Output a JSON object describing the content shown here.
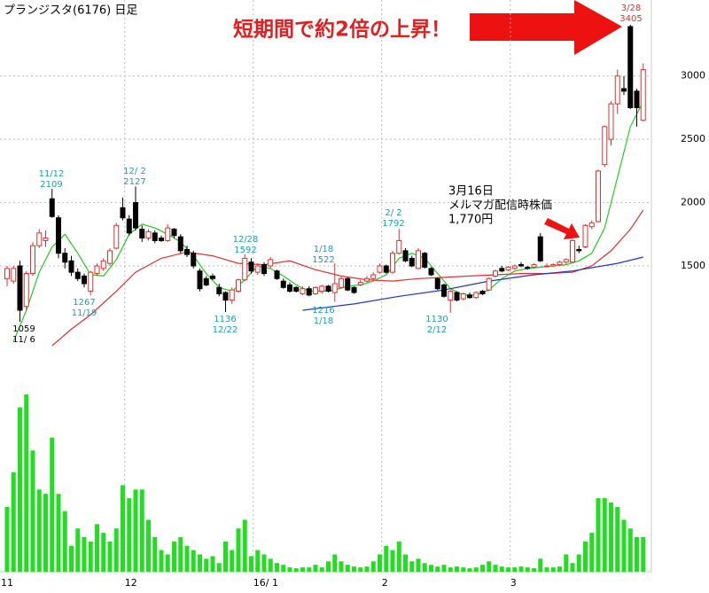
{
  "chart_data": {
    "type": "candlestick",
    "title": "プランジスタ(6176) 日足",
    "headline": "短期間で約2倍の上昇！",
    "callout": [
      "3月16日",
      "メルマガ配信時株価",
      "1,770円"
    ],
    "categories": [
      "11",
      null,
      null,
      null,
      null,
      null,
      null,
      null,
      null,
      null,
      null,
      null,
      null,
      null,
      null,
      null,
      null,
      null,
      null,
      "12",
      null,
      null,
      null,
      null,
      null,
      null,
      null,
      null,
      null,
      null,
      null,
      null,
      null,
      null,
      null,
      null,
      null,
      null,
      null,
      "16/ 1",
      null,
      null,
      null,
      null,
      null,
      null,
      null,
      null,
      null,
      null,
      null,
      null,
      null,
      null,
      null,
      null,
      null,
      null,
      null,
      "2",
      null,
      null,
      null,
      null,
      null,
      null,
      null,
      null,
      null,
      null,
      null,
      null,
      null,
      null,
      null,
      null,
      null,
      null,
      null,
      "3",
      null,
      null,
      null,
      null,
      null,
      null,
      null,
      null,
      null,
      null,
      null,
      null,
      null,
      null,
      null,
      null,
      null,
      null,
      null,
      null
    ],
    "ohlc": [
      [
        1400,
        1500,
        1340,
        1480
      ],
      [
        1380,
        1500,
        1360,
        1480
      ],
      [
        1500,
        1540,
        1059,
        1150
      ],
      [
        1180,
        1460,
        1150,
        1440
      ],
      [
        1440,
        1690,
        1420,
        1660
      ],
      [
        1660,
        1790,
        1640,
        1760
      ],
      [
        1700,
        1780,
        1650,
        1720
      ],
      [
        2030,
        2109,
        1880,
        1890
      ],
      [
        1880,
        1900,
        1560,
        1600
      ],
      [
        1600,
        1640,
        1480,
        1530
      ],
      [
        1540,
        1580,
        1420,
        1450
      ],
      [
        1450,
        1480,
        1380,
        1400
      ],
      [
        1420,
        1440,
        1330,
        1360
      ],
      [
        1300,
        1460,
        1267,
        1450
      ],
      [
        1440,
        1520,
        1420,
        1500
      ],
      [
        1480,
        1560,
        1460,
        1540
      ],
      [
        1520,
        1640,
        1500,
        1620
      ],
      [
        1640,
        1840,
        1630,
        1820
      ],
      [
        1960,
        2040,
        1860,
        1880
      ],
      [
        1870,
        1900,
        1740,
        1760
      ],
      [
        2000,
        2127,
        1780,
        1800
      ],
      [
        1790,
        1820,
        1690,
        1720
      ],
      [
        1720,
        1790,
        1700,
        1770
      ],
      [
        1760,
        1780,
        1680,
        1700
      ],
      [
        1720,
        1740,
        1690,
        1700
      ],
      [
        1700,
        1830,
        1690,
        1800
      ],
      [
        1790,
        1800,
        1720,
        1740
      ],
      [
        1730,
        1750,
        1600,
        1620
      ],
      [
        1630,
        1660,
        1570,
        1590
      ],
      [
        1600,
        1620,
        1480,
        1500
      ],
      [
        1460,
        1480,
        1300,
        1320
      ],
      [
        1400,
        1420,
        1340,
        1350
      ],
      [
        1420,
        1440,
        1390,
        1400
      ],
      [
        1330,
        1360,
        1260,
        1280
      ],
      [
        1290,
        1300,
        1136,
        1230
      ],
      [
        1230,
        1330,
        1200,
        1310
      ],
      [
        1300,
        1400,
        1290,
        1390
      ],
      [
        1390,
        1592,
        1380,
        1560
      ],
      [
        1530,
        1560,
        1440,
        1460
      ],
      [
        1450,
        1520,
        1430,
        1500
      ],
      [
        1510,
        1530,
        1420,
        1440
      ],
      [
        1500,
        1570,
        1480,
        1550
      ],
      [
        1460,
        1470,
        1390,
        1400
      ],
      [
        1380,
        1400,
        1320,
        1330
      ],
      [
        1350,
        1370,
        1290,
        1300
      ],
      [
        1330,
        1340,
        1290,
        1300
      ],
      [
        1280,
        1340,
        1270,
        1320
      ],
      [
        1320,
        1340,
        1260,
        1270
      ],
      [
        1280,
        1340,
        1270,
        1330
      ],
      [
        1300,
        1350,
        1280,
        1340
      ],
      [
        1340,
        1350,
        1290,
        1300
      ],
      [
        1290,
        1522,
        1216,
        1360
      ],
      [
        1330,
        1420,
        1320,
        1400
      ],
      [
        1400,
        1410,
        1300,
        1310
      ],
      [
        1330,
        1340,
        1280,
        1290
      ],
      [
        1350,
        1390,
        1340,
        1370
      ],
      [
        1380,
        1420,
        1370,
        1400
      ],
      [
        1400,
        1450,
        1390,
        1430
      ],
      [
        1450,
        1520,
        1440,
        1500
      ],
      [
        1500,
        1510,
        1440,
        1450
      ],
      [
        1450,
        1620,
        1440,
        1600
      ],
      [
        1600,
        1792,
        1590,
        1700
      ],
      [
        1620,
        1640,
        1530,
        1540
      ],
      [
        1560,
        1580,
        1490,
        1500
      ],
      [
        1480,
        1640,
        1470,
        1620
      ],
      [
        1600,
        1610,
        1480,
        1490
      ],
      [
        1480,
        1490,
        1420,
        1430
      ],
      [
        1400,
        1410,
        1310,
        1320
      ],
      [
        1350,
        1360,
        1250,
        1260
      ],
      [
        1230,
        1310,
        1130,
        1300
      ],
      [
        1290,
        1300,
        1220,
        1230
      ],
      [
        1240,
        1290,
        1230,
        1280
      ],
      [
        1270,
        1290,
        1240,
        1250
      ],
      [
        1250,
        1300,
        1240,
        1290
      ],
      [
        1300,
        1310,
        1270,
        1280
      ],
      [
        1310,
        1410,
        1300,
        1400
      ],
      [
        1420,
        1470,
        1410,
        1460
      ],
      [
        1480,
        1500,
        1450,
        1460
      ],
      [
        1470,
        1500,
        1460,
        1490
      ],
      [
        1480,
        1510,
        1470,
        1500
      ],
      [
        1510,
        1530,
        1490,
        1500
      ],
      [
        1490,
        1500,
        1470,
        1480
      ],
      [
        1490,
        1520,
        1480,
        1510
      ],
      [
        1730,
        1760,
        1530,
        1540
      ],
      [
        1500,
        1520,
        1490,
        1500
      ],
      [
        1500,
        1520,
        1490,
        1510
      ],
      [
        1510,
        1540,
        1500,
        1530
      ],
      [
        1530,
        1560,
        1510,
        1550
      ],
      [
        1530,
        1710,
        1520,
        1700
      ],
      [
        1630,
        1660,
        1600,
        1620
      ],
      [
        1650,
        1830,
        1640,
        1820
      ],
      [
        1810,
        1860,
        1790,
        1840
      ],
      [
        1850,
        2260,
        1840,
        2250
      ],
      [
        2300,
        2610,
        2280,
        2600
      ],
      [
        2500,
        2800,
        2450,
        2780
      ],
      [
        2780,
        3050,
        2700,
        3000
      ],
      [
        2900,
        3000,
        2850,
        2880
      ],
      [
        3390,
        3405,
        2740,
        2750
      ],
      [
        2880,
        2900,
        2600,
        2750
      ],
      [
        2650,
        3100,
        2640,
        3050
      ]
    ],
    "up_color": "#e03030",
    "down_color": "#000000",
    "volume": [
      75,
      115,
      190,
      205,
      140,
      95,
      90,
      155,
      90,
      70,
      30,
      50,
      40,
      35,
      55,
      45,
      35,
      50,
      100,
      85,
      95,
      95,
      60,
      40,
      25,
      20,
      35,
      40,
      30,
      25,
      20,
      15,
      18,
      10,
      35,
      25,
      50,
      60,
      18,
      25,
      20,
      15,
      10,
      8,
      5,
      4,
      5,
      5,
      8,
      5,
      12,
      20,
      12,
      8,
      6,
      5,
      6,
      12,
      20,
      30,
      25,
      35,
      20,
      12,
      15,
      10,
      8,
      6,
      8,
      5,
      6,
      5,
      4,
      5,
      8,
      12,
      8,
      6,
      5,
      5,
      6,
      5,
      4,
      15,
      5,
      5,
      6,
      20,
      10,
      20,
      35,
      45,
      85,
      85,
      80,
      75,
      60,
      50,
      40,
      40
    ],
    "volume_color": "#22dd22",
    "vlim": [
      0,
      210
    ],
    "moving_averages": [
      {
        "color": "#22cc22",
        "x": [
          1,
          3,
          5,
          7,
          9,
          11,
          13,
          15,
          17,
          19,
          21,
          23,
          25,
          27,
          29,
          31,
          33,
          35,
          37,
          39,
          41,
          43,
          45,
          47,
          49,
          51,
          53,
          55,
          57,
          59,
          61,
          63,
          65,
          67,
          69,
          71,
          73,
          75,
          77,
          79,
          81,
          83,
          85,
          87,
          89,
          91,
          93,
          95,
          97,
          99
        ],
        "values": [
          905,
          1150,
          1450,
          1650,
          1750,
          1600,
          1430,
          1420,
          1550,
          1750,
          1830,
          1800,
          1750,
          1690,
          1580,
          1440,
          1330,
          1300,
          1390,
          1500,
          1480,
          1420,
          1350,
          1300,
          1300,
          1310,
          1340,
          1350,
          1380,
          1430,
          1560,
          1600,
          1560,
          1440,
          1320,
          1270,
          1270,
          1310,
          1400,
          1460,
          1480,
          1490,
          1500,
          1510,
          1540,
          1600,
          1800,
          2200,
          2600,
          2800
        ]
      },
      {
        "color": "#e03030",
        "x": [
          7,
          10,
          13,
          17,
          20,
          24,
          28,
          32,
          36,
          40,
          44,
          48,
          52,
          56,
          60,
          64,
          68,
          72,
          76,
          80,
          84,
          88,
          91,
          94,
          97,
          99
        ],
        "values": [
          870,
          1000,
          1115,
          1300,
          1450,
          1560,
          1610,
          1580,
          1520,
          1510,
          1540,
          1470,
          1420,
          1390,
          1380,
          1400,
          1410,
          1420,
          1430,
          1440,
          1440,
          1450,
          1500,
          1620,
          1790,
          1940
        ]
      },
      {
        "color": "#2233cc",
        "x": [
          46,
          54,
          61,
          68,
          75,
          82,
          88,
          95,
          99
        ],
        "values": [
          1150,
          1200,
          1260,
          1310,
          1380,
          1430,
          1460,
          1520,
          1570
        ]
      }
    ],
    "annotations": [
      {
        "date": "11/12",
        "value": 2109,
        "color": "#1a9fb0"
      },
      {
        "date": "12/ 2",
        "value": 2127,
        "color": "#1a9fb0"
      },
      {
        "date": "12/28",
        "value": 1592,
        "color": "#1a9fb0"
      },
      {
        "date": "1/18",
        "value": 1522,
        "color": "#1a9fb0"
      },
      {
        "date": "2/ 2",
        "value": 1792,
        "color": "#1a9fb0"
      },
      {
        "date": "11/19",
        "value": 1267,
        "color": "#1a9fb0"
      },
      {
        "date": "12/22",
        "value": 1136,
        "color": "#1a9fb0"
      },
      {
        "date": "1/18",
        "value": 1216,
        "color": "#1a9fb0"
      },
      {
        "date": "2/12",
        "value": 1130,
        "color": "#1a9fb0"
      },
      {
        "date": "11/ 6",
        "value": 1059,
        "color": "#000000"
      },
      {
        "date": "3/28",
        "value": 3405,
        "color": "#e03030"
      }
    ],
    "ylim": [
      520,
      3600
    ],
    "yticks": [
      1500,
      2000,
      2500,
      3000
    ],
    "grid": true
  }
}
